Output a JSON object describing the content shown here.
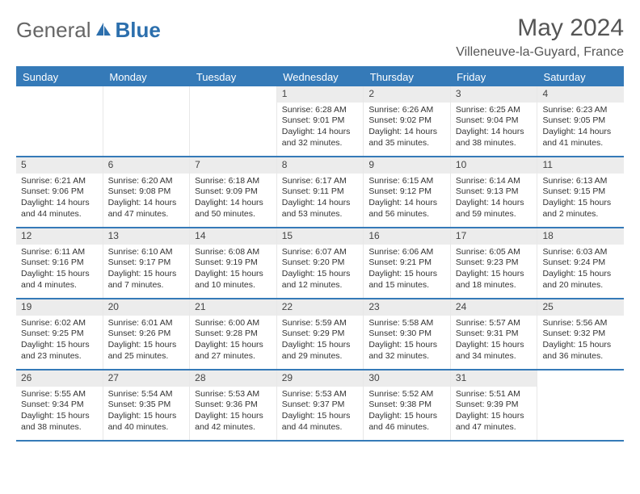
{
  "brand": {
    "part1": "General",
    "part2": "Blue"
  },
  "title": "May 2024",
  "location": "Villeneuve-la-Guyard, France",
  "colors": {
    "header_bar": "#357ab8",
    "daynum_bg": "#ececec",
    "text": "#333333",
    "logo_gray": "#666666",
    "logo_blue": "#2c6fad"
  },
  "day_names": [
    "Sunday",
    "Monday",
    "Tuesday",
    "Wednesday",
    "Thursday",
    "Friday",
    "Saturday"
  ],
  "weeks": [
    [
      {
        "n": "",
        "sunrise": "",
        "sunset": "",
        "day1": "",
        "day2": ""
      },
      {
        "n": "",
        "sunrise": "",
        "sunset": "",
        "day1": "",
        "day2": ""
      },
      {
        "n": "",
        "sunrise": "",
        "sunset": "",
        "day1": "",
        "day2": ""
      },
      {
        "n": "1",
        "sunrise": "Sunrise: 6:28 AM",
        "sunset": "Sunset: 9:01 PM",
        "day1": "Daylight: 14 hours",
        "day2": "and 32 minutes."
      },
      {
        "n": "2",
        "sunrise": "Sunrise: 6:26 AM",
        "sunset": "Sunset: 9:02 PM",
        "day1": "Daylight: 14 hours",
        "day2": "and 35 minutes."
      },
      {
        "n": "3",
        "sunrise": "Sunrise: 6:25 AM",
        "sunset": "Sunset: 9:04 PM",
        "day1": "Daylight: 14 hours",
        "day2": "and 38 minutes."
      },
      {
        "n": "4",
        "sunrise": "Sunrise: 6:23 AM",
        "sunset": "Sunset: 9:05 PM",
        "day1": "Daylight: 14 hours",
        "day2": "and 41 minutes."
      }
    ],
    [
      {
        "n": "5",
        "sunrise": "Sunrise: 6:21 AM",
        "sunset": "Sunset: 9:06 PM",
        "day1": "Daylight: 14 hours",
        "day2": "and 44 minutes."
      },
      {
        "n": "6",
        "sunrise": "Sunrise: 6:20 AM",
        "sunset": "Sunset: 9:08 PM",
        "day1": "Daylight: 14 hours",
        "day2": "and 47 minutes."
      },
      {
        "n": "7",
        "sunrise": "Sunrise: 6:18 AM",
        "sunset": "Sunset: 9:09 PM",
        "day1": "Daylight: 14 hours",
        "day2": "and 50 minutes."
      },
      {
        "n": "8",
        "sunrise": "Sunrise: 6:17 AM",
        "sunset": "Sunset: 9:11 PM",
        "day1": "Daylight: 14 hours",
        "day2": "and 53 minutes."
      },
      {
        "n": "9",
        "sunrise": "Sunrise: 6:15 AM",
        "sunset": "Sunset: 9:12 PM",
        "day1": "Daylight: 14 hours",
        "day2": "and 56 minutes."
      },
      {
        "n": "10",
        "sunrise": "Sunrise: 6:14 AM",
        "sunset": "Sunset: 9:13 PM",
        "day1": "Daylight: 14 hours",
        "day2": "and 59 minutes."
      },
      {
        "n": "11",
        "sunrise": "Sunrise: 6:13 AM",
        "sunset": "Sunset: 9:15 PM",
        "day1": "Daylight: 15 hours",
        "day2": "and 2 minutes."
      }
    ],
    [
      {
        "n": "12",
        "sunrise": "Sunrise: 6:11 AM",
        "sunset": "Sunset: 9:16 PM",
        "day1": "Daylight: 15 hours",
        "day2": "and 4 minutes."
      },
      {
        "n": "13",
        "sunrise": "Sunrise: 6:10 AM",
        "sunset": "Sunset: 9:17 PM",
        "day1": "Daylight: 15 hours",
        "day2": "and 7 minutes."
      },
      {
        "n": "14",
        "sunrise": "Sunrise: 6:08 AM",
        "sunset": "Sunset: 9:19 PM",
        "day1": "Daylight: 15 hours",
        "day2": "and 10 minutes."
      },
      {
        "n": "15",
        "sunrise": "Sunrise: 6:07 AM",
        "sunset": "Sunset: 9:20 PM",
        "day1": "Daylight: 15 hours",
        "day2": "and 12 minutes."
      },
      {
        "n": "16",
        "sunrise": "Sunrise: 6:06 AM",
        "sunset": "Sunset: 9:21 PM",
        "day1": "Daylight: 15 hours",
        "day2": "and 15 minutes."
      },
      {
        "n": "17",
        "sunrise": "Sunrise: 6:05 AM",
        "sunset": "Sunset: 9:23 PM",
        "day1": "Daylight: 15 hours",
        "day2": "and 18 minutes."
      },
      {
        "n": "18",
        "sunrise": "Sunrise: 6:03 AM",
        "sunset": "Sunset: 9:24 PM",
        "day1": "Daylight: 15 hours",
        "day2": "and 20 minutes."
      }
    ],
    [
      {
        "n": "19",
        "sunrise": "Sunrise: 6:02 AM",
        "sunset": "Sunset: 9:25 PM",
        "day1": "Daylight: 15 hours",
        "day2": "and 23 minutes."
      },
      {
        "n": "20",
        "sunrise": "Sunrise: 6:01 AM",
        "sunset": "Sunset: 9:26 PM",
        "day1": "Daylight: 15 hours",
        "day2": "and 25 minutes."
      },
      {
        "n": "21",
        "sunrise": "Sunrise: 6:00 AM",
        "sunset": "Sunset: 9:28 PM",
        "day1": "Daylight: 15 hours",
        "day2": "and 27 minutes."
      },
      {
        "n": "22",
        "sunrise": "Sunrise: 5:59 AM",
        "sunset": "Sunset: 9:29 PM",
        "day1": "Daylight: 15 hours",
        "day2": "and 29 minutes."
      },
      {
        "n": "23",
        "sunrise": "Sunrise: 5:58 AM",
        "sunset": "Sunset: 9:30 PM",
        "day1": "Daylight: 15 hours",
        "day2": "and 32 minutes."
      },
      {
        "n": "24",
        "sunrise": "Sunrise: 5:57 AM",
        "sunset": "Sunset: 9:31 PM",
        "day1": "Daylight: 15 hours",
        "day2": "and 34 minutes."
      },
      {
        "n": "25",
        "sunrise": "Sunrise: 5:56 AM",
        "sunset": "Sunset: 9:32 PM",
        "day1": "Daylight: 15 hours",
        "day2": "and 36 minutes."
      }
    ],
    [
      {
        "n": "26",
        "sunrise": "Sunrise: 5:55 AM",
        "sunset": "Sunset: 9:34 PM",
        "day1": "Daylight: 15 hours",
        "day2": "and 38 minutes."
      },
      {
        "n": "27",
        "sunrise": "Sunrise: 5:54 AM",
        "sunset": "Sunset: 9:35 PM",
        "day1": "Daylight: 15 hours",
        "day2": "and 40 minutes."
      },
      {
        "n": "28",
        "sunrise": "Sunrise: 5:53 AM",
        "sunset": "Sunset: 9:36 PM",
        "day1": "Daylight: 15 hours",
        "day2": "and 42 minutes."
      },
      {
        "n": "29",
        "sunrise": "Sunrise: 5:53 AM",
        "sunset": "Sunset: 9:37 PM",
        "day1": "Daylight: 15 hours",
        "day2": "and 44 minutes."
      },
      {
        "n": "30",
        "sunrise": "Sunrise: 5:52 AM",
        "sunset": "Sunset: 9:38 PM",
        "day1": "Daylight: 15 hours",
        "day2": "and 46 minutes."
      },
      {
        "n": "31",
        "sunrise": "Sunrise: 5:51 AM",
        "sunset": "Sunset: 9:39 PM",
        "day1": "Daylight: 15 hours",
        "day2": "and 47 minutes."
      },
      {
        "n": "",
        "sunrise": "",
        "sunset": "",
        "day1": "",
        "day2": ""
      }
    ]
  ]
}
